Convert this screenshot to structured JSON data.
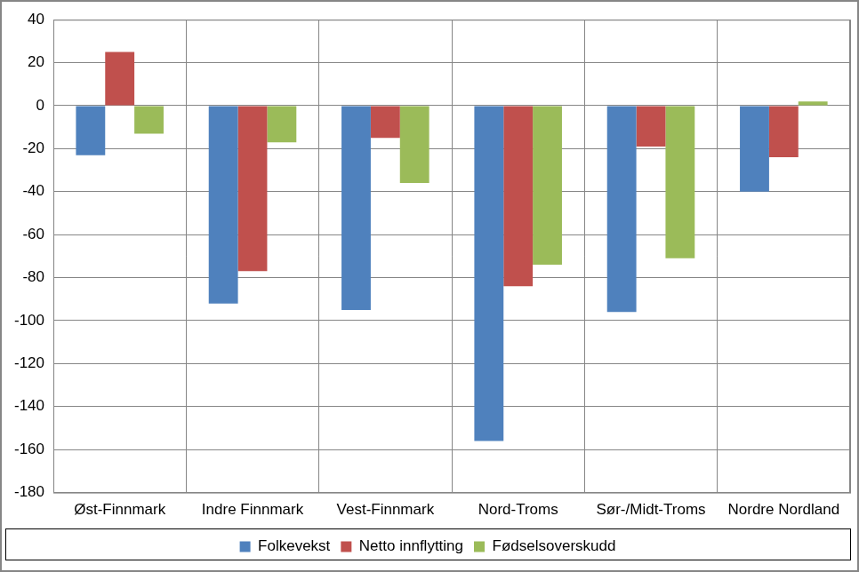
{
  "chart_data": {
    "type": "bar",
    "categories": [
      "Øst-Finnmark",
      "Indre Finnmark",
      "Vest-Finnmark",
      "Nord-Troms",
      "Sør-/Midt-Troms",
      "Nordre Nordland"
    ],
    "series": [
      {
        "name": "Folkevekst",
        "color": "#4f81bd",
        "values": [
          -23,
          -92,
          -95,
          -156,
          -96,
          -40
        ]
      },
      {
        "name": "Netto innflytting",
        "color": "#c0504d",
        "values": [
          25,
          -77,
          -15,
          -84,
          -19,
          -24
        ]
      },
      {
        "name": "Fødselsoverskudd",
        "color": "#9bbb59",
        "values": [
          -13,
          -17,
          -36,
          -74,
          -71,
          2
        ]
      }
    ],
    "ylim": [
      -180,
      40
    ],
    "yticks": [
      -180,
      -160,
      -140,
      -120,
      -100,
      -80,
      -60,
      -40,
      -20,
      0,
      20,
      40
    ],
    "grid": true,
    "legend": "bottom"
  }
}
